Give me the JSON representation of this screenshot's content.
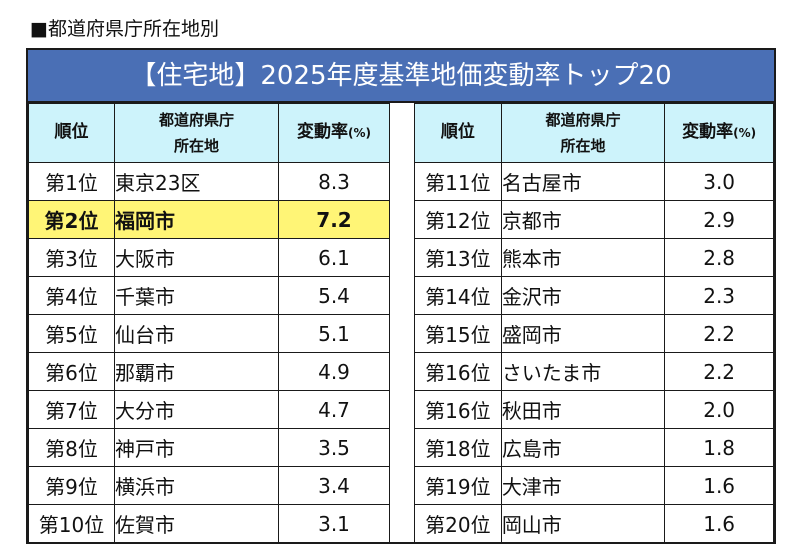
{
  "caption": "■都道府県庁所在地別",
  "title": "【住宅地】2025年度基準地価変動率トップ20",
  "headers": {
    "rank": "順位",
    "city_line1": "都道府県庁",
    "city_line2": "所在地",
    "rate": "変動率",
    "rate_unit": "(%)"
  },
  "left_rows": [
    {
      "rank": "第1位",
      "city": "東京23区",
      "rate": "8.3"
    },
    {
      "rank": "第2位",
      "city": "福岡市",
      "rate": "7.2"
    },
    {
      "rank": "第3位",
      "city": "大阪市",
      "rate": "6.1"
    },
    {
      "rank": "第4位",
      "city": "千葉市",
      "rate": "5.4"
    },
    {
      "rank": "第5位",
      "city": "仙台市",
      "rate": "5.1"
    },
    {
      "rank": "第6位",
      "city": "那覇市",
      "rate": "4.9"
    },
    {
      "rank": "第7位",
      "city": "大分市",
      "rate": "4.7"
    },
    {
      "rank": "第8位",
      "city": "神戸市",
      "rate": "3.5"
    },
    {
      "rank": "第9位",
      "city": "横浜市",
      "rate": "3.4"
    },
    {
      "rank": "第10位",
      "city": "佐賀市",
      "rate": "3.1"
    }
  ],
  "right_rows": [
    {
      "rank": "第11位",
      "city": "名古屋市",
      "rate": "3.0"
    },
    {
      "rank": "第12位",
      "city": "京都市",
      "rate": "2.9"
    },
    {
      "rank": "第13位",
      "city": "熊本市",
      "rate": "2.8"
    },
    {
      "rank": "第14位",
      "city": "金沢市",
      "rate": "2.3"
    },
    {
      "rank": "第15位",
      "city": "盛岡市",
      "rate": "2.2"
    },
    {
      "rank": "第16位",
      "city": "さいたま市",
      "rate": "2.2"
    },
    {
      "rank": "第16位",
      "city": "秋田市",
      "rate": "2.0"
    },
    {
      "rank": "第18位",
      "city": "広島市",
      "rate": "1.8"
    },
    {
      "rank": "第19位",
      "city": "大津市",
      "rate": "1.6"
    },
    {
      "rank": "第20位",
      "city": "岡山市",
      "rate": "1.6"
    }
  ],
  "colors": {
    "title_bg": "#4a6fb5",
    "header_bg": "#cdf3fb",
    "highlight_bg": "#fff576"
  },
  "highlight_rank": "第2位"
}
